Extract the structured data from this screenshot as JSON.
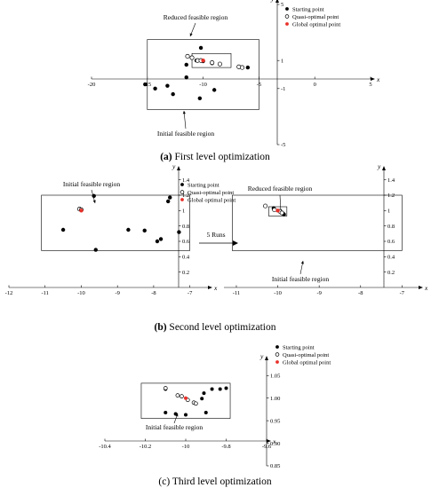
{
  "colors": {
    "axis": "#000000",
    "marker": "#000000",
    "global": "#e8312a",
    "box": "#000000"
  },
  "captions": {
    "a": {
      "label": "(a)",
      "text": " First level optimization"
    },
    "b": {
      "label": "(b)",
      "text": " Second level optimization"
    },
    "c": {
      "label": "(c)",
      "text": " Third level optimization"
    }
  },
  "arrow_label": "5 Runs",
  "chart_data": [
    {
      "id": "a",
      "type": "scatter",
      "xlabel": "x",
      "ylabel": "y",
      "xlim": [
        -20,
        5
      ],
      "ylim": [
        -5,
        5
      ],
      "xticks": [
        -20,
        -15,
        -10,
        -5,
        0,
        5
      ],
      "xtick_labels": [
        "-20",
        "-15",
        "-10",
        "-5",
        "0",
        "5"
      ],
      "yticks": [
        5,
        1,
        -1,
        -5
      ],
      "ytick_labels": [
        "5",
        "1",
        "-1",
        "-5"
      ],
      "legend": [
        "Starting point",
        "Quasi-optimal point",
        "Global optimal point"
      ],
      "legend_position": "top-right",
      "annotations": [
        "Reduced feasible region",
        "Initial feasible region"
      ],
      "regions": [
        {
          "name": "initial",
          "x": [
            -15,
            -5
          ],
          "y": [
            -2.5,
            2.5
          ]
        },
        {
          "name": "reduced",
          "x": [
            -11,
            -7.5
          ],
          "y": [
            0.5,
            1.5
          ]
        }
      ],
      "series": [
        {
          "name": "Starting point",
          "points": [
            [
              -10.2,
              1.9
            ],
            [
              -11.5,
              0.7
            ],
            [
              -11.5,
              -0.2
            ],
            [
              -13.2,
              -0.8
            ],
            [
              -14.3,
              -1.0
            ],
            [
              -15.2,
              -0.7
            ],
            [
              -12.7,
              -1.4
            ],
            [
              -9.0,
              -1.1
            ],
            [
              -10.3,
              -1.7
            ],
            [
              -6.0,
              0.5
            ],
            [
              -9.2,
              0.8
            ],
            [
              -10.6,
              1.0
            ],
            [
              -10.0,
              0.95
            ]
          ]
        },
        {
          "name": "Quasi-optimal point",
          "points": [
            [
              -11.4,
              1.3
            ],
            [
              -11.0,
              1.2
            ],
            [
              -10.5,
              1.0
            ],
            [
              -10.2,
              1.0
            ],
            [
              -9.2,
              0.85
            ],
            [
              -8.5,
              0.75
            ],
            [
              -6.8,
              0.55
            ],
            [
              -6.5,
              0.5
            ]
          ]
        },
        {
          "name": "Global optimal point",
          "points": [
            [
              -10.0,
              1.0
            ]
          ]
        }
      ]
    },
    {
      "id": "b-left",
      "type": "scatter",
      "xlabel": "x",
      "ylabel": "y",
      "xlim": [
        -12,
        -6.5
      ],
      "ylim": [
        0,
        1.5
      ],
      "xticks": [
        -12,
        -11,
        -10,
        -9,
        -8,
        -7
      ],
      "xtick_labels": [
        "-12",
        "-11",
        "-10",
        "-9",
        "-8",
        "-7"
      ],
      "yticks": [
        0.2,
        0.4,
        0.6,
        0.8,
        1,
        1.2,
        1.4
      ],
      "ytick_labels": [
        "0.2",
        "0.4",
        "0.6",
        "0.8",
        "1",
        "1.2",
        "1.4"
      ],
      "legend": [
        "Starting point",
        "Quasi-optimal point",
        "Global optimal point"
      ],
      "legend_position": "top-right",
      "annotations": [
        "Initial feasible region"
      ],
      "regions": [
        {
          "name": "initial",
          "x": [
            -11.1,
            -7
          ],
          "y": [
            0.48,
            1.2
          ]
        }
      ],
      "series": [
        {
          "name": "Starting point",
          "points": [
            [
              -9.65,
              1.19
            ],
            [
              -7.55,
              1.17
            ],
            [
              -7.6,
              1.12
            ],
            [
              -10.5,
              0.75
            ],
            [
              -8.7,
              0.75
            ],
            [
              -8.25,
              0.74
            ],
            [
              -7.3,
              0.72
            ],
            [
              -7.8,
              0.63
            ],
            [
              -7.9,
              0.6
            ],
            [
              -9.6,
              0.49
            ]
          ]
        },
        {
          "name": "Quasi-optimal point",
          "points": [
            [
              -10.05,
              1.02
            ],
            [
              -10.0,
              1.01
            ]
          ]
        },
        {
          "name": "Global optimal point",
          "points": [
            [
              -10.0,
              1.0
            ]
          ]
        }
      ]
    },
    {
      "id": "b-right",
      "type": "scatter",
      "xlabel": "x",
      "ylabel": "y",
      "xlim": [
        -11.3,
        -6.6
      ],
      "ylim": [
        0,
        1.5
      ],
      "xticks": [
        -11,
        -10,
        -9,
        -8,
        -7
      ],
      "xtick_labels": [
        "-11",
        "-10",
        "-9",
        "-8",
        "-7"
      ],
      "yticks": [
        0.2,
        0.4,
        0.6,
        0.8,
        1,
        1.2,
        1.4
      ],
      "ytick_labels": [
        "0.2",
        "0.4",
        "0.6",
        "0.8",
        "1",
        "1.2",
        "1.4"
      ],
      "annotations": [
        "Reduced feasible region",
        "Initial feasible region"
      ],
      "regions": [
        {
          "name": "initial",
          "x": [
            -11.1,
            -7
          ],
          "y": [
            0.48,
            1.2
          ]
        },
        {
          "name": "reduced",
          "x": [
            -10.22,
            -9.78
          ],
          "y": [
            0.93,
            1.05
          ]
        }
      ],
      "series": [
        {
          "name": "Starting point",
          "points": [
            [
              -10.1,
              1.03
            ],
            [
              -9.87,
              0.96
            ],
            [
              -9.85,
              0.95
            ]
          ]
        },
        {
          "name": "Quasi-optimal point",
          "points": [
            [
              -10.3,
              1.06
            ],
            [
              -10.08,
              1.01
            ],
            [
              -9.95,
              0.99
            ],
            [
              -9.9,
              0.97
            ]
          ]
        },
        {
          "name": "Global optimal point",
          "points": [
            [
              -10.0,
              1.0
            ]
          ]
        }
      ]
    },
    {
      "id": "c",
      "type": "scatter",
      "xlabel": "x",
      "ylabel": "y",
      "xlim": [
        -10.4,
        -9.6
      ],
      "ylim": [
        0.85,
        1.08
      ],
      "xticks": [
        -10.4,
        -10.2,
        -10,
        -9.8,
        -9.6
      ],
      "xtick_labels": [
        "-10.4",
        "-10.2",
        "-10",
        "-9.8",
        "-9.6"
      ],
      "yticks": [
        1.05,
        1.0,
        0.95,
        0.9,
        0.85
      ],
      "ytick_labels": [
        "1.05",
        "1.00",
        "0.95",
        "0.90",
        "0.85"
      ],
      "legend": [
        "Starting point",
        "Quasi-optimal point",
        "Global optimal point"
      ],
      "legend_position": "top-right",
      "annotations": [
        "Initial feasible region"
      ],
      "regions": [
        {
          "name": "initial",
          "x": [
            -10.22,
            -9.78
          ],
          "y": [
            0.955,
            1.033
          ]
        }
      ],
      "series": [
        {
          "name": "Starting point",
          "points": [
            [
              -10.1,
              1.02
            ],
            [
              -9.87,
              1.02
            ],
            [
              -9.83,
              1.02
            ],
            [
              -9.8,
              1.022
            ],
            [
              -9.91,
              1.011
            ],
            [
              -9.92,
              0.999
            ],
            [
              -10.1,
              0.968
            ],
            [
              -10.05,
              0.965
            ],
            [
              -10.0,
              0.963
            ],
            [
              -9.9,
              0.968
            ]
          ]
        },
        {
          "name": "Quasi-optimal point",
          "points": [
            [
              -10.1,
              1.022
            ],
            [
              -10.04,
              1.006
            ],
            [
              -10.02,
              1.004
            ],
            [
              -9.99,
              0.996
            ],
            [
              -9.96,
              0.99
            ],
            [
              -9.95,
              0.988
            ]
          ]
        },
        {
          "name": "Global optimal point",
          "points": [
            [
              -10.0,
              1.0
            ]
          ]
        }
      ]
    }
  ]
}
